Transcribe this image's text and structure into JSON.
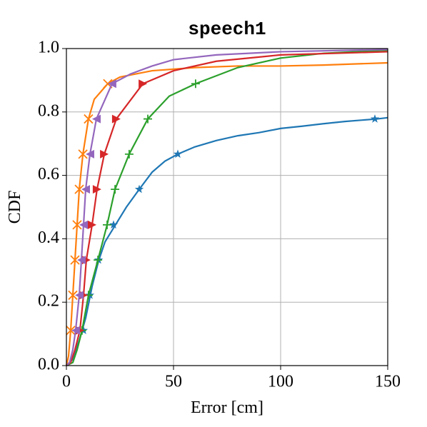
{
  "chart_data": {
    "type": "line",
    "title": "speech1",
    "x_label": "Error [cm]",
    "y_label": "CDF",
    "xlim": [
      0,
      150
    ],
    "ylim": [
      0,
      1
    ],
    "xticks": [
      0,
      50,
      100,
      150
    ],
    "yticks": [
      {
        "value": 0,
        "label": "0.0"
      },
      0.2,
      0.4,
      0.6,
      0.8,
      {
        "value": 1,
        "label": "1.0"
      }
    ],
    "grid": true,
    "series": [
      {
        "color": "#1f77b4",
        "marker": "star",
        "x": [
          0,
          3,
          6,
          9,
          12,
          15,
          18,
          23,
          28,
          34,
          40,
          46,
          52,
          60,
          70,
          80,
          90,
          100,
          110,
          120,
          130,
          145,
          150
        ],
        "values": [
          0,
          0.02,
          0.08,
          0.15,
          0.25,
          0.33,
          0.39,
          0.445,
          0.5,
          0.556,
          0.61,
          0.645,
          0.667,
          0.69,
          0.71,
          0.725,
          0.735,
          0.748,
          0.755,
          0.763,
          0.77,
          0.778,
          0.782
        ],
        "markers": {
          "x": [
            8,
            11,
            15,
            22,
            34,
            52,
            144
          ],
          "values": [
            0.111,
            0.222,
            0.333,
            0.444,
            0.556,
            0.667,
            0.778
          ]
        }
      },
      {
        "color": "#ff7f0e",
        "marker": "x",
        "x": [
          0,
          1,
          2,
          3,
          4,
          5,
          6,
          7.7,
          10.3,
          13,
          19.3,
          25,
          40,
          60,
          80,
          100,
          120,
          150
        ],
        "values": [
          0,
          0.03,
          0.111,
          0.222,
          0.333,
          0.444,
          0.556,
          0.667,
          0.778,
          0.84,
          0.889,
          0.91,
          0.93,
          0.94,
          0.945,
          0.945,
          0.948,
          0.955
        ],
        "markers": {
          "x": [
            2,
            3,
            4,
            5,
            6,
            7.7,
            10.3,
            19.3
          ],
          "values": [
            0.111,
            0.222,
            0.333,
            0.444,
            0.556,
            0.667,
            0.778,
            0.889
          ]
        }
      },
      {
        "color": "#2ca02c",
        "marker": "plus",
        "x": [
          0,
          3,
          5,
          7.3,
          10.3,
          14.7,
          19,
          22.7,
          29.3,
          38,
          48,
          60.3,
          80,
          100,
          120,
          150
        ],
        "values": [
          0,
          0.01,
          0.05,
          0.111,
          0.222,
          0.333,
          0.444,
          0.556,
          0.667,
          0.778,
          0.85,
          0.889,
          0.94,
          0.97,
          0.985,
          0.995
        ],
        "markers": {
          "x": [
            7.3,
            10.3,
            14.7,
            19,
            22.7,
            29.3,
            38,
            60.3
          ],
          "values": [
            0.111,
            0.222,
            0.333,
            0.444,
            0.556,
            0.667,
            0.778,
            0.889
          ]
        }
      },
      {
        "color": "#d62728",
        "marker": "triangle-right",
        "x": [
          0,
          2,
          4,
          6.3,
          8,
          9.3,
          12,
          14.3,
          17.7,
          23.3,
          35.7,
          50,
          70,
          100,
          150
        ],
        "values": [
          0,
          0.01,
          0.05,
          0.111,
          0.222,
          0.333,
          0.444,
          0.556,
          0.667,
          0.778,
          0.889,
          0.93,
          0.96,
          0.98,
          0.99
        ],
        "markers": {
          "x": [
            6.3,
            8,
            9.3,
            12,
            14.3,
            17.7,
            23.3,
            35.7
          ],
          "values": [
            0.111,
            0.222,
            0.333,
            0.444,
            0.556,
            0.667,
            0.778,
            0.889
          ]
        }
      },
      {
        "color": "#9467bd",
        "marker": "triangle-left",
        "x": [
          0,
          1.5,
          3,
          4.3,
          6,
          7,
          8,
          9,
          11,
          14,
          21.3,
          30,
          40,
          50,
          70,
          100,
          150
        ],
        "values": [
          0,
          0.01,
          0.05,
          0.111,
          0.222,
          0.333,
          0.444,
          0.556,
          0.667,
          0.778,
          0.889,
          0.92,
          0.945,
          0.965,
          0.98,
          0.99,
          0.997
        ],
        "markers": {
          "x": [
            4.3,
            6,
            7,
            8,
            9,
            11,
            14,
            21.3
          ],
          "values": [
            0.111,
            0.222,
            0.333,
            0.444,
            0.556,
            0.667,
            0.778,
            0.889
          ]
        }
      }
    ]
  }
}
